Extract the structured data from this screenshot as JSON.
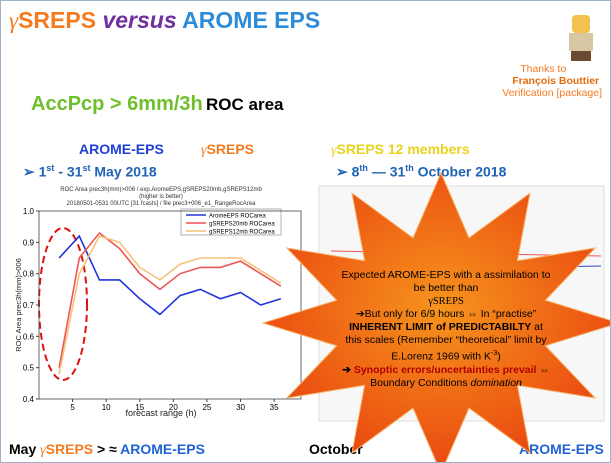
{
  "title": {
    "gamma": "γ",
    "part1": "SREPS",
    "part2": "versus",
    "part3": "AROME EPS"
  },
  "thanks": {
    "line1": "Thanks to",
    "name": "François Bouttier",
    "line3": "Verification [package]"
  },
  "heading": {
    "metric": "AccPcp > 6mm/3h",
    "score": "ROC area"
  },
  "columns": [
    "AROME-EPS",
    {
      "gamma": "γ",
      "text": "SREPS"
    },
    {
      "gamma": "γ",
      "text": "SREPS 12 members"
    }
  ],
  "periods": [
    {
      "bullet": "➢",
      "start": "1",
      "start_suffix": "st",
      "sep": "-",
      "end": "31",
      "end_suffix": "st",
      "rest": "May 2018"
    },
    {
      "bullet": "➢",
      "start": "8",
      "start_suffix": "th",
      "sep": "—",
      "end": "31",
      "end_suffix": "th",
      "rest": "October 2018"
    }
  ],
  "plot": {
    "title": "ROC Area prec3h(mm)>006 / exp.AromeEPS,gSREPS20mb,gSREPS12mb",
    "subtitle": "(higher is better)",
    "caption": "20180501-0531 00UTC [31 fcasts] / file prec3+006_e1_RangeRocArea",
    "xlabel": "forecast range (h)",
    "ylabel": "ROC Area prec3h(mm)>006",
    "x": [
      3,
      6,
      9,
      12,
      15,
      18,
      21,
      24,
      27,
      30,
      33,
      36
    ],
    "series": [
      {
        "name": "AromeEPS ROCarea",
        "color": "#2233dd",
        "values": [
          0.85,
          0.92,
          0.78,
          0.78,
          0.72,
          0.67,
          0.73,
          0.75,
          0.72,
          0.74,
          0.7,
          0.72
        ]
      },
      {
        "name": "gSREPS20mb ROCarea",
        "color": "#ee5555",
        "values": [
          0.5,
          0.85,
          0.93,
          0.88,
          0.8,
          0.75,
          0.8,
          0.82,
          0.82,
          0.84,
          0.8,
          0.76
        ]
      },
      {
        "name": "gSREPS12mb ROCarea",
        "color": "#f5c27a",
        "values": [
          0.48,
          0.8,
          0.92,
          0.9,
          0.82,
          0.78,
          0.83,
          0.85,
          0.85,
          0.85,
          0.81,
          0.77
        ]
      }
    ],
    "xlim": [
      0,
      39
    ],
    "ylim": [
      0.4,
      1.0
    ],
    "xticks": [
      5,
      10,
      15,
      20,
      25,
      30,
      35
    ],
    "yticks": [
      0.4,
      0.5,
      0.6,
      0.7,
      0.8,
      0.9,
      {
        "value": 1.0,
        "label": "1.0"
      }
    ]
  },
  "callout": [
    "Expected AROME-EPS with a assimilation to be better than",
    "γSREPS",
    "➔But only for 6/9 hours ⇔ In “practise”",
    "INHERENT LIMIT of PREDICTABILTY",
    "at this scales (Remember “theoretical” limit by E.Lorenz 1969 with K",
    "-3",
    ")",
    "➔",
    "Synoptic errors/uncertainties prevail",
    "⇔ Boundary Conditions",
    "domination"
  ],
  "conclusion": {
    "left": [
      "May",
      "γ",
      "SREPS",
      "> ≈",
      "AROME-EPS"
    ],
    "right": [
      "October",
      "AROME-EPS"
    ]
  }
}
